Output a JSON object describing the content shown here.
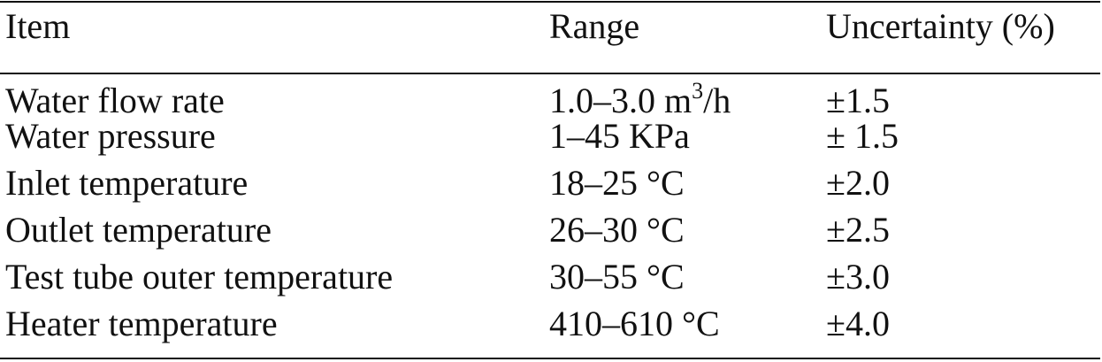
{
  "table": {
    "headers": {
      "item": "Item",
      "range": "Range",
      "uncertainty": "Uncertainty (%)"
    },
    "rows": [
      {
        "item": "Water flow rate",
        "range": "1.0–3.0 m",
        "range_sup": "3",
        "range_suffix": "/h",
        "uncertainty": "±1.5"
      },
      {
        "item": "Water pressure",
        "range": "1–45 KPa",
        "uncertainty": "± 1.5"
      },
      {
        "item": "Inlet temperature",
        "range": "18–25 °C",
        "uncertainty": "±2.0"
      },
      {
        "item": "Outlet temperature",
        "range": "26–30 °C",
        "uncertainty": "±2.5"
      },
      {
        "item": "Test tube outer temperature",
        "range": "30–55 °C",
        "uncertainty": "±3.0"
      },
      {
        "item": "Heater temperature",
        "range": "410–610 °C",
        "uncertainty": "±4.0"
      }
    ]
  }
}
